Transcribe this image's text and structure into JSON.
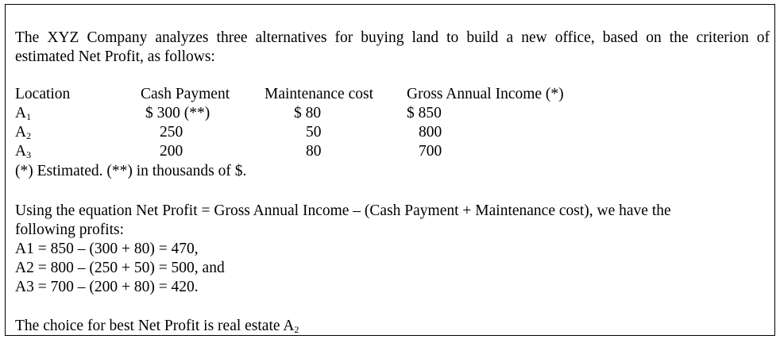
{
  "intro": {
    "line1": "The XYZ Company analyzes three alternatives for buying land to build a new office, based on the criterion of",
    "line2": "estimated Net Profit, as follows:"
  },
  "table": {
    "headers": [
      "Location",
      "Cash Payment",
      "Maintenance cost",
      "Gross Annual Income (*)"
    ],
    "rows": [
      {
        "location": "A",
        "sub": "1",
        "cash": "$ 300 (**)",
        "maintenance": "$ 80",
        "income": "$ 850"
      },
      {
        "location": "A",
        "sub": "2",
        "cash": "250",
        "maintenance": "50",
        "income": "800"
      },
      {
        "location": "A",
        "sub": "3",
        "cash": "200",
        "maintenance": "80",
        "income": "700"
      }
    ],
    "footnote": "(*) Estimated.  (**) in thousands of $."
  },
  "equation": {
    "line1": "Using the equation Net Profit = Gross Annual Income – (Cash Payment + Maintenance cost), we have the",
    "line2": "following  profits:",
    "calc1": "A1 = 850 – (300 + 80) = 470,",
    "calc2": "A2 = 800 – (250 + 50) = 500, and",
    "calc3": "A3 = 700 – (200 + 80) = 420."
  },
  "conclusion": {
    "text": "The choice for best Net Profit is real estate A",
    "sub": "2"
  }
}
